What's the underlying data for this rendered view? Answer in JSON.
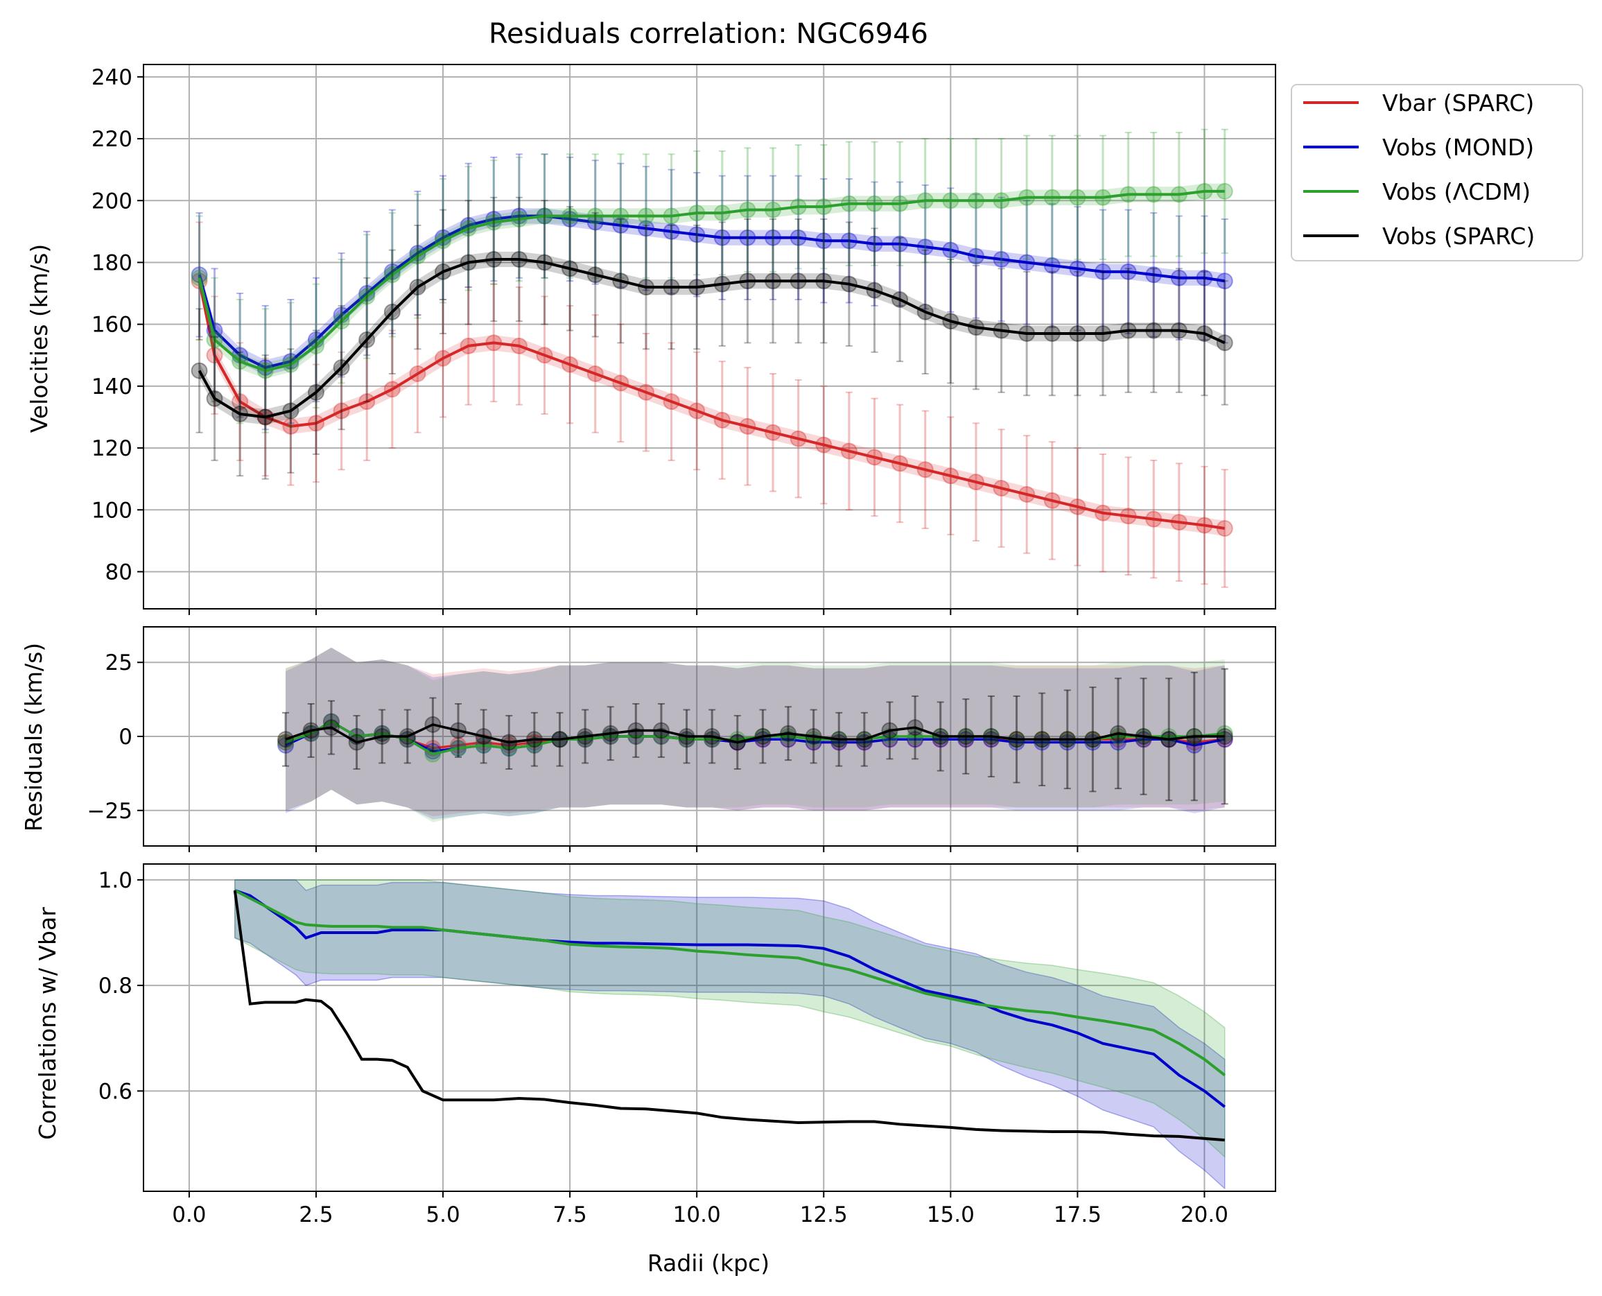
{
  "chart_data": {
    "title": "Residuals correlation: NGC6946",
    "xlabel": "Radii (kpc)",
    "xlim": [
      -0.9,
      21.4
    ],
    "xticks": [
      0.0,
      2.5,
      5.0,
      7.5,
      10.0,
      12.5,
      15.0,
      17.5,
      20.0
    ],
    "xtick_labels": [
      "0.0",
      "2.5",
      "5.0",
      "7.5",
      "10.0",
      "12.5",
      "15.0",
      "17.5",
      "20.0"
    ],
    "grid": true,
    "legend": {
      "placement": "outside upper-right",
      "entries": [
        {
          "label": "Vbar (SPARC)",
          "color": "#d62728"
        },
        {
          "label": "Vobs (MOND)",
          "color": "#0000cc"
        },
        {
          "label": "Vobs (ΛCDM)",
          "color": "#2ca02c"
        },
        {
          "label": "Vobs (SPARC)",
          "color": "#000000"
        }
      ]
    },
    "panels": [
      {
        "type": "line",
        "ylabel": "Velocities (km/s)",
        "ylim": [
          68,
          244
        ],
        "yticks": [
          80,
          100,
          120,
          140,
          160,
          180,
          200,
          220,
          240
        ],
        "x": [
          0.2,
          0.5,
          1.0,
          1.5,
          2.0,
          2.5,
          3.0,
          3.5,
          4.0,
          4.5,
          5.0,
          5.5,
          6.0,
          6.5,
          7.0,
          7.5,
          8.0,
          8.5,
          9.0,
          9.5,
          10.0,
          10.5,
          11.0,
          11.5,
          12.0,
          12.5,
          13.0,
          13.5,
          14.0,
          14.5,
          15.0,
          15.5,
          16.0,
          16.5,
          17.0,
          17.5,
          18.0,
          18.5,
          19.0,
          19.5,
          20.0,
          20.4
        ],
        "series": [
          {
            "name": "Vbar (SPARC)",
            "color": "#d62728",
            "err": 19,
            "values": [
              174,
              150,
              135,
              130,
              127,
              128,
              132,
              135,
              139,
              144,
              149,
              153,
              154,
              153,
              150,
              147,
              144,
              141,
              138,
              135,
              132,
              129,
              127,
              125,
              123,
              121,
              119,
              117,
              115,
              113,
              111,
              109,
              107,
              105,
              103,
              101,
              99,
              98,
              97,
              96,
              95,
              94
            ]
          },
          {
            "name": "Vobs (MOND)",
            "color": "#0000cc",
            "err": 20,
            "values": [
              176,
              158,
              150,
              146,
              148,
              155,
              163,
              170,
              177,
              183,
              188,
              192,
              194,
              195,
              195,
              194,
              193,
              192,
              191,
              190,
              189,
              188,
              188,
              188,
              188,
              187,
              187,
              186,
              186,
              185,
              184,
              182,
              181,
              180,
              179,
              178,
              177,
              177,
              176,
              175,
              175,
              174
            ]
          },
          {
            "name": "Vobs (ΛCDM)",
            "color": "#2ca02c",
            "err": 20,
            "values": [
              175,
              155,
              148,
              145,
              147,
              153,
              161,
              169,
              176,
              182,
              187,
              191,
              193,
              194,
              195,
              195,
              195,
              195,
              195,
              195,
              196,
              196,
              197,
              197,
              198,
              198,
              199,
              199,
              199,
              200,
              200,
              200,
              200,
              201,
              201,
              201,
              201,
              202,
              202,
              202,
              203,
              203
            ]
          },
          {
            "name": "Vobs (SPARC)",
            "color": "#000000",
            "err": 20,
            "values": [
              145,
              136,
              131,
              130,
              132,
              138,
              146,
              155,
              164,
              172,
              177,
              180,
              181,
              181,
              180,
              178,
              176,
              174,
              172,
              172,
              172,
              173,
              174,
              174,
              174,
              174,
              173,
              171,
              168,
              164,
              161,
              159,
              158,
              157,
              157,
              157,
              157,
              158,
              158,
              158,
              157,
              154
            ]
          }
        ]
      },
      {
        "type": "line",
        "ylabel": "Residuals (km/s)",
        "ylim": [
          -37,
          37
        ],
        "yticks": [
          -25,
          0,
          25
        ],
        "ytick_labels": [
          "−25",
          "0",
          "25"
        ],
        "x": [
          1.9,
          2.4,
          2.8,
          3.3,
          3.8,
          4.3,
          4.8,
          5.3,
          5.8,
          6.3,
          6.8,
          7.3,
          7.8,
          8.3,
          8.8,
          9.3,
          9.8,
          10.3,
          10.8,
          11.3,
          11.8,
          12.3,
          12.8,
          13.3,
          13.8,
          14.3,
          14.8,
          15.3,
          15.8,
          16.3,
          16.8,
          17.3,
          17.8,
          18.3,
          18.8,
          19.3,
          19.8,
          20.4
        ],
        "band": 23,
        "series": [
          {
            "name": "Vbar (SPARC)",
            "color": "#d62728",
            "values": [
              -2,
              1,
              5,
              0,
              1,
              -1,
              -4,
              -3,
              -2,
              -3,
              -2,
              -1,
              -1,
              0,
              0,
              0,
              -1,
              -1,
              -2,
              -1,
              -1,
              -2,
              -2,
              -2,
              -1,
              -1,
              -1,
              -1,
              -1,
              -1,
              -1,
              -1,
              -1,
              -1,
              -1,
              -1,
              -2,
              -1
            ]
          },
          {
            "name": "Vobs (MOND)",
            "color": "#0000cc",
            "values": [
              -3,
              1,
              5,
              0,
              1,
              -1,
              -5,
              -4,
              -3,
              -4,
              -3,
              -1,
              -1,
              0,
              0,
              0,
              -1,
              -1,
              -2,
              -1,
              -1,
              -2,
              -2,
              -2,
              -1,
              -1,
              -1,
              -1,
              -1,
              -2,
              -2,
              -2,
              -2,
              -2,
              -1,
              -1,
              -3,
              -1
            ]
          },
          {
            "name": "Vobs (ΛCDM)",
            "color": "#2ca02c",
            "values": [
              -2,
              1,
              5,
              0,
              1,
              -1,
              -6,
              -4,
              -3,
              -4,
              -3,
              -1,
              -1,
              0,
              0,
              0,
              -1,
              -1,
              -1,
              0,
              0,
              -1,
              -1,
              -1,
              0,
              0,
              0,
              0,
              0,
              -1,
              -1,
              -1,
              -1,
              0,
              0,
              0,
              0,
              1
            ]
          },
          {
            "name": "Vobs (SPARC)",
            "color": "#000000",
            "err": 9,
            "values": [
              -1,
              2,
              3,
              -2,
              0,
              0,
              4,
              2,
              0,
              -2,
              -1,
              -1,
              0,
              1,
              2,
              2,
              0,
              0,
              -2,
              0,
              1,
              0,
              -1,
              -1,
              2,
              3,
              0,
              0,
              0,
              -1,
              -1,
              -1,
              -1,
              1,
              0,
              -1,
              0,
              0
            ]
          }
        ]
      },
      {
        "type": "line",
        "ylabel": "Correlations w/ Vbar",
        "ylim": [
          0.41,
          1.03
        ],
        "yticks": [
          0.6,
          0.8,
          1.0
        ],
        "ytick_labels": [
          "0.6",
          "0.8",
          "1.0"
        ],
        "x": [
          0.9,
          1.2,
          1.5,
          1.8,
          2.1,
          2.3,
          2.6,
          2.8,
          3.1,
          3.4,
          3.7,
          4.0,
          4.3,
          4.6,
          5.0,
          5.5,
          6.0,
          6.5,
          7.0,
          7.5,
          8.0,
          8.5,
          9.0,
          9.5,
          10.0,
          10.5,
          11.0,
          11.5,
          12.0,
          12.5,
          13.0,
          13.5,
          14.0,
          14.5,
          15.0,
          15.5,
          16.0,
          16.5,
          17.0,
          17.5,
          18.0,
          18.5,
          19.0,
          19.5,
          20.0,
          20.4
        ],
        "series": [
          {
            "name": "Vobs (MOND)",
            "color": "#0000cc",
            "band": 0.09,
            "values": [
              0.98,
              0.97,
              0.95,
              0.93,
              0.91,
              0.89,
              0.9,
              0.9,
              0.9,
              0.9,
              0.9,
              0.905,
              0.905,
              0.905,
              0.905,
              0.9,
              0.895,
              0.89,
              0.885,
              0.882,
              0.88,
              0.88,
              0.879,
              0.878,
              0.877,
              0.877,
              0.877,
              0.876,
              0.875,
              0.87,
              0.855,
              0.83,
              0.81,
              0.79,
              0.78,
              0.77,
              0.75,
              0.735,
              0.725,
              0.71,
              0.69,
              0.68,
              0.67,
              0.63,
              0.6,
              0.57
            ]
          },
          {
            "name": "Vobs (ΛCDM)",
            "color": "#2ca02c",
            "band": 0.09,
            "values": [
              0.98,
              0.965,
              0.95,
              0.935,
              0.92,
              0.915,
              0.913,
              0.912,
              0.912,
              0.912,
              0.912,
              0.91,
              0.91,
              0.91,
              0.905,
              0.9,
              0.895,
              0.89,
              0.885,
              0.878,
              0.875,
              0.873,
              0.872,
              0.87,
              0.865,
              0.862,
              0.858,
              0.855,
              0.852,
              0.84,
              0.83,
              0.815,
              0.8,
              0.785,
              0.775,
              0.765,
              0.758,
              0.752,
              0.748,
              0.74,
              0.733,
              0.725,
              0.715,
              0.69,
              0.66,
              0.63
            ]
          },
          {
            "name": "Vobs (SPARC)",
            "color": "#000000",
            "values": [
              0.98,
              0.765,
              0.768,
              0.768,
              0.768,
              0.773,
              0.77,
              0.755,
              0.71,
              0.66,
              0.66,
              0.658,
              0.645,
              0.6,
              0.583,
              0.583,
              0.583,
              0.586,
              0.584,
              0.578,
              0.573,
              0.567,
              0.566,
              0.562,
              0.558,
              0.55,
              0.546,
              0.543,
              0.54,
              0.541,
              0.542,
              0.542,
              0.537,
              0.534,
              0.531,
              0.527,
              0.525,
              0.524,
              0.523,
              0.523,
              0.522,
              0.518,
              0.515,
              0.514,
              0.51,
              0.507
            ]
          }
        ]
      }
    ]
  }
}
